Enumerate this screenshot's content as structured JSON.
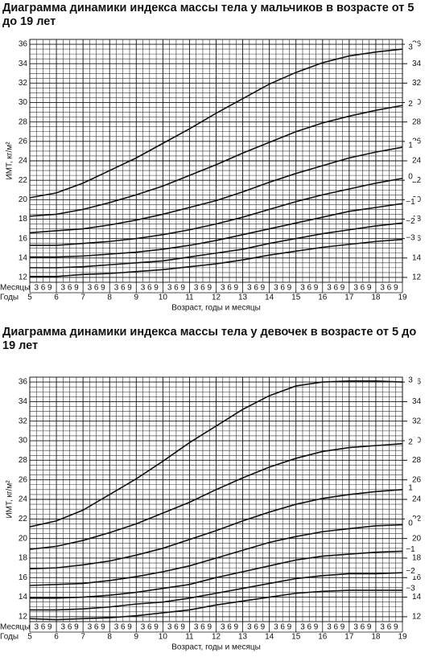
{
  "chart_data": [
    {
      "type": "line",
      "title": "Диаграмма динамики индекса массы тела у мальчиков в возрасте от 5 до 19 лет",
      "ylabel": "ИМТ, кг/м²",
      "xlabel": "Возраст, годы и месяцы",
      "months_label": "Месяцы",
      "years_label": "Годы",
      "month_labels": [
        "3",
        "6",
        "9"
      ],
      "x": [
        5,
        6,
        7,
        8,
        9,
        10,
        11,
        12,
        13,
        14,
        15,
        16,
        17,
        18,
        19
      ],
      "xlim": [
        5,
        19
      ],
      "xticks": [
        5,
        6,
        7,
        8,
        9,
        10,
        11,
        12,
        13,
        14,
        15,
        16,
        17,
        18,
        19
      ],
      "ylim": [
        11.5,
        36.5
      ],
      "yticks": [
        12,
        14,
        16,
        18,
        20,
        22,
        24,
        26,
        28,
        30,
        32,
        34,
        36
      ],
      "grid": true,
      "series": [
        {
          "name": "3",
          "color": "#111111",
          "values": [
            20.2,
            20.7,
            21.7,
            23.0,
            24.3,
            25.8,
            27.3,
            28.9,
            30.4,
            31.9,
            33.1,
            34.1,
            34.8,
            35.2,
            35.5
          ]
        },
        {
          "name": "2",
          "color": "#111111",
          "values": [
            18.3,
            18.5,
            19.0,
            19.7,
            20.5,
            21.4,
            22.5,
            23.6,
            24.8,
            25.9,
            27.0,
            27.9,
            28.6,
            29.2,
            29.7
          ]
        },
        {
          "name": "1",
          "color": "#111111",
          "values": [
            16.6,
            16.8,
            17.0,
            17.4,
            17.9,
            18.5,
            19.2,
            19.9,
            20.8,
            21.8,
            22.7,
            23.5,
            24.3,
            24.9,
            25.4
          ]
        },
        {
          "name": "0",
          "color": "#111111",
          "values": [
            15.3,
            15.3,
            15.5,
            15.7,
            16.0,
            16.4,
            16.9,
            17.5,
            18.2,
            19.0,
            19.8,
            20.5,
            21.1,
            21.7,
            22.2
          ]
        },
        {
          "name": "−1",
          "color": "#111111",
          "values": [
            14.1,
            14.1,
            14.2,
            14.4,
            14.6,
            14.9,
            15.3,
            15.8,
            16.4,
            17.0,
            17.6,
            18.2,
            18.8,
            19.2,
            19.6
          ]
        },
        {
          "name": "−2",
          "color": "#111111",
          "values": [
            13.0,
            13.0,
            13.1,
            13.3,
            13.5,
            13.7,
            14.1,
            14.5,
            14.9,
            15.5,
            16.0,
            16.5,
            16.9,
            17.3,
            17.6
          ]
        },
        {
          "name": "−3",
          "color": "#111111",
          "values": [
            12.1,
            12.1,
            12.3,
            12.4,
            12.6,
            12.8,
            13.1,
            13.4,
            13.8,
            14.3,
            14.7,
            15.1,
            15.4,
            15.7,
            15.9
          ]
        }
      ]
    },
    {
      "type": "line",
      "title": "Диаграмма динамики индекса массы тела у девочек в возрасте от 5 до 19 лет",
      "ylabel": "ИМТ, кг/м²",
      "xlabel": "Возраст, годы и месяцы",
      "months_label": "Месяцы",
      "years_label": "Годы",
      "month_labels": [
        "3",
        "6",
        "9"
      ],
      "x": [
        5,
        6,
        7,
        8,
        9,
        10,
        11,
        12,
        13,
        14,
        15,
        16,
        17,
        18,
        19
      ],
      "xlim": [
        5,
        19
      ],
      "xticks": [
        5,
        6,
        7,
        8,
        9,
        10,
        11,
        12,
        13,
        14,
        15,
        16,
        17,
        18,
        19
      ],
      "ylim": [
        11.5,
        36.5
      ],
      "yticks": [
        12,
        14,
        16,
        18,
        20,
        22,
        24,
        26,
        28,
        30,
        32,
        34,
        36
      ],
      "grid": true,
      "series": [
        {
          "name": "3",
          "color": "#111111",
          "values": [
            21.2,
            21.8,
            22.9,
            24.5,
            26.1,
            27.9,
            29.8,
            31.5,
            33.2,
            34.6,
            35.6,
            36.0,
            36.1,
            36.1,
            36.0
          ]
        },
        {
          "name": "2",
          "color": "#111111",
          "values": [
            18.9,
            19.2,
            19.8,
            20.6,
            21.5,
            22.6,
            23.7,
            25.0,
            26.2,
            27.3,
            28.2,
            28.9,
            29.3,
            29.5,
            29.7
          ]
        },
        {
          "name": "1",
          "color": "#111111",
          "values": [
            16.9,
            17.0,
            17.3,
            17.7,
            18.3,
            19.0,
            19.9,
            20.8,
            21.8,
            22.7,
            23.5,
            24.1,
            24.5,
            24.8,
            25.0
          ]
        },
        {
          "name": "0",
          "color": "#111111",
          "values": [
            15.2,
            15.3,
            15.4,
            15.7,
            16.1,
            16.6,
            17.2,
            18.0,
            18.8,
            19.6,
            20.2,
            20.7,
            21.0,
            21.3,
            21.4
          ]
        },
        {
          "name": "−1",
          "color": "#111111",
          "values": [
            13.9,
            13.9,
            14.0,
            14.2,
            14.5,
            14.9,
            15.3,
            16.0,
            16.6,
            17.2,
            17.8,
            18.2,
            18.4,
            18.6,
            18.7
          ]
        },
        {
          "name": "−2",
          "color": "#111111",
          "values": [
            12.7,
            12.7,
            12.8,
            13.0,
            13.3,
            13.5,
            13.9,
            14.4,
            14.9,
            15.4,
            15.9,
            16.2,
            16.4,
            16.4,
            16.5
          ]
        },
        {
          "name": "−3",
          "color": "#111111",
          "values": [
            11.8,
            11.7,
            11.8,
            11.9,
            12.1,
            12.4,
            12.7,
            13.2,
            13.6,
            14.0,
            14.4,
            14.6,
            14.7,
            14.7,
            14.7
          ]
        }
      ]
    }
  ]
}
